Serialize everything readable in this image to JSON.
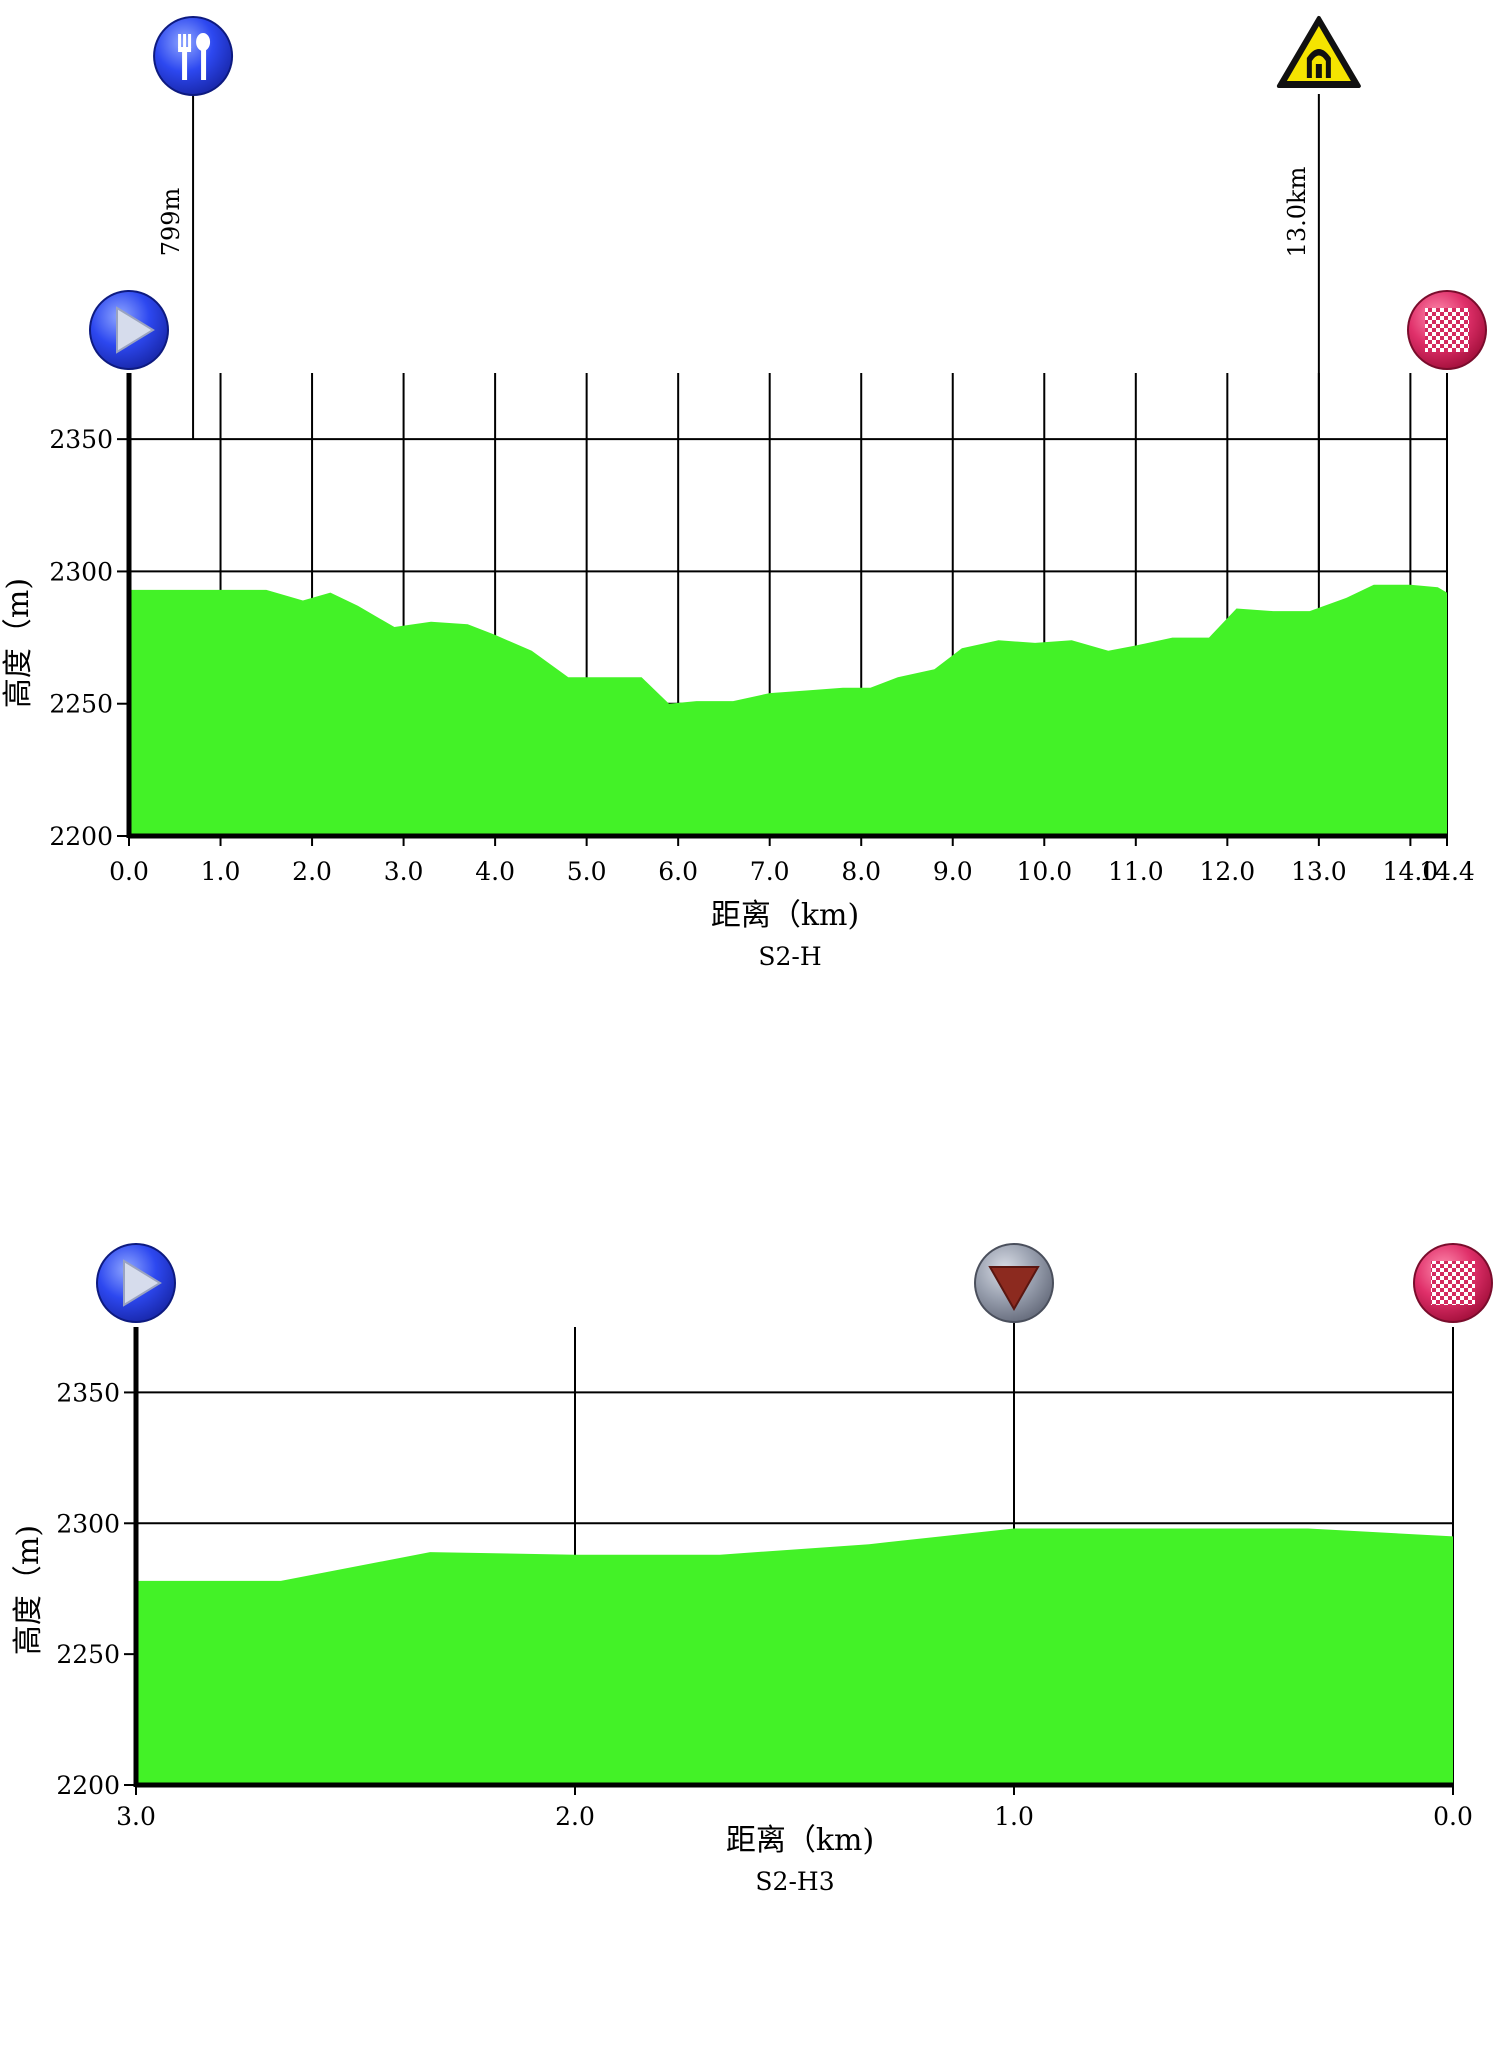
{
  "chart_data": [
    {
      "type": "area",
      "title": "S2-H",
      "xlabel": "距离（km)",
      "ylabel": "高度（m)",
      "xlim": [
        0,
        14.4
      ],
      "ylim": [
        2200,
        2375
      ],
      "x_ticks": [
        {
          "v": 0,
          "label": "0.0"
        },
        {
          "v": 1,
          "label": "1.0"
        },
        {
          "v": 2,
          "label": "2.0"
        },
        {
          "v": 3,
          "label": "3.0"
        },
        {
          "v": 4,
          "label": "4.0"
        },
        {
          "v": 5,
          "label": "5.0"
        },
        {
          "v": 6,
          "label": "6.0"
        },
        {
          "v": 7,
          "label": "7.0"
        },
        {
          "v": 8,
          "label": "8.0"
        },
        {
          "v": 9,
          "label": "9.0"
        },
        {
          "v": 10,
          "label": "10.0"
        },
        {
          "v": 11,
          "label": "11.0"
        },
        {
          "v": 12,
          "label": "12.0"
        },
        {
          "v": 13,
          "label": "13.0"
        },
        {
          "v": 14,
          "label": "14.0"
        },
        {
          "v": 14.4,
          "label": "14.4"
        }
      ],
      "y_ticks": [
        {
          "v": 2200,
          "label": "2200"
        },
        {
          "v": 2250,
          "label": "2250"
        },
        {
          "v": 2300,
          "label": "2300"
        },
        {
          "v": 2350,
          "label": "2350"
        }
      ],
      "grid": true,
      "series": [
        {
          "color": "#43f227",
          "x": [
            0,
            0.5,
            1.0,
            1.5,
            1.9,
            2.2,
            2.5,
            2.9,
            3.3,
            3.7,
            4.0,
            4.4,
            4.8,
            5.2,
            5.6,
            5.9,
            6.2,
            6.6,
            7.0,
            7.4,
            7.8,
            8.1,
            8.4,
            8.8,
            9.1,
            9.5,
            9.9,
            10.3,
            10.7,
            11.0,
            11.4,
            11.8,
            12.1,
            12.5,
            12.9,
            13.3,
            13.6,
            14.0,
            14.3,
            14.4
          ],
          "y": [
            2293,
            2293,
            2293,
            2293,
            2289,
            2292,
            2287,
            2279,
            2281,
            2280,
            2276,
            2270,
            2260,
            2260,
            2260,
            2250,
            2251,
            2251,
            2254,
            2255,
            2256,
            2256,
            2260,
            2263,
            2271,
            2274,
            2273,
            2274,
            2270,
            2272,
            2275,
            2275,
            2286,
            2285,
            2285,
            2290,
            2295,
            2295,
            2294,
            2292
          ]
        }
      ],
      "markers": [
        {
          "name": "start-icon",
          "x": 0
        },
        {
          "name": "food-icon",
          "x": 0.7,
          "label": "799m"
        },
        {
          "name": "tunnel-icon",
          "x": 13.0,
          "label": "13.0km"
        },
        {
          "name": "finish-flag-icon",
          "x": 14.4
        }
      ]
    },
    {
      "type": "area",
      "title": "S2-H3",
      "xlabel": "距离（km)",
      "ylabel": "高度（m)",
      "xlim": [
        3.0,
        0.0
      ],
      "ylim": [
        2200,
        2375
      ],
      "x_ticks": [
        {
          "v": 3,
          "label": "3.0"
        },
        {
          "v": 2,
          "label": "2.0"
        },
        {
          "v": 1,
          "label": "1.0"
        },
        {
          "v": 0,
          "label": "0.0"
        }
      ],
      "y_ticks": [
        {
          "v": 2200,
          "label": "2200"
        },
        {
          "v": 2250,
          "label": "2250"
        },
        {
          "v": 2300,
          "label": "2300"
        },
        {
          "v": 2350,
          "label": "2350"
        }
      ],
      "grid": true,
      "series": [
        {
          "color": "#43f227",
          "x": [
            3.0,
            2.67,
            2.33,
            2.0,
            1.67,
            1.33,
            1.0,
            0.67,
            0.33,
            0.0
          ],
          "y": [
            2278,
            2278,
            2289,
            2288,
            2288,
            2292,
            2298,
            2298,
            2298,
            2295
          ]
        }
      ],
      "markers": [
        {
          "name": "start-icon",
          "x": 3.0
        },
        {
          "name": "descent-icon",
          "x": 1.0
        },
        {
          "name": "finish-flag-icon",
          "x": 0.0
        }
      ]
    }
  ]
}
